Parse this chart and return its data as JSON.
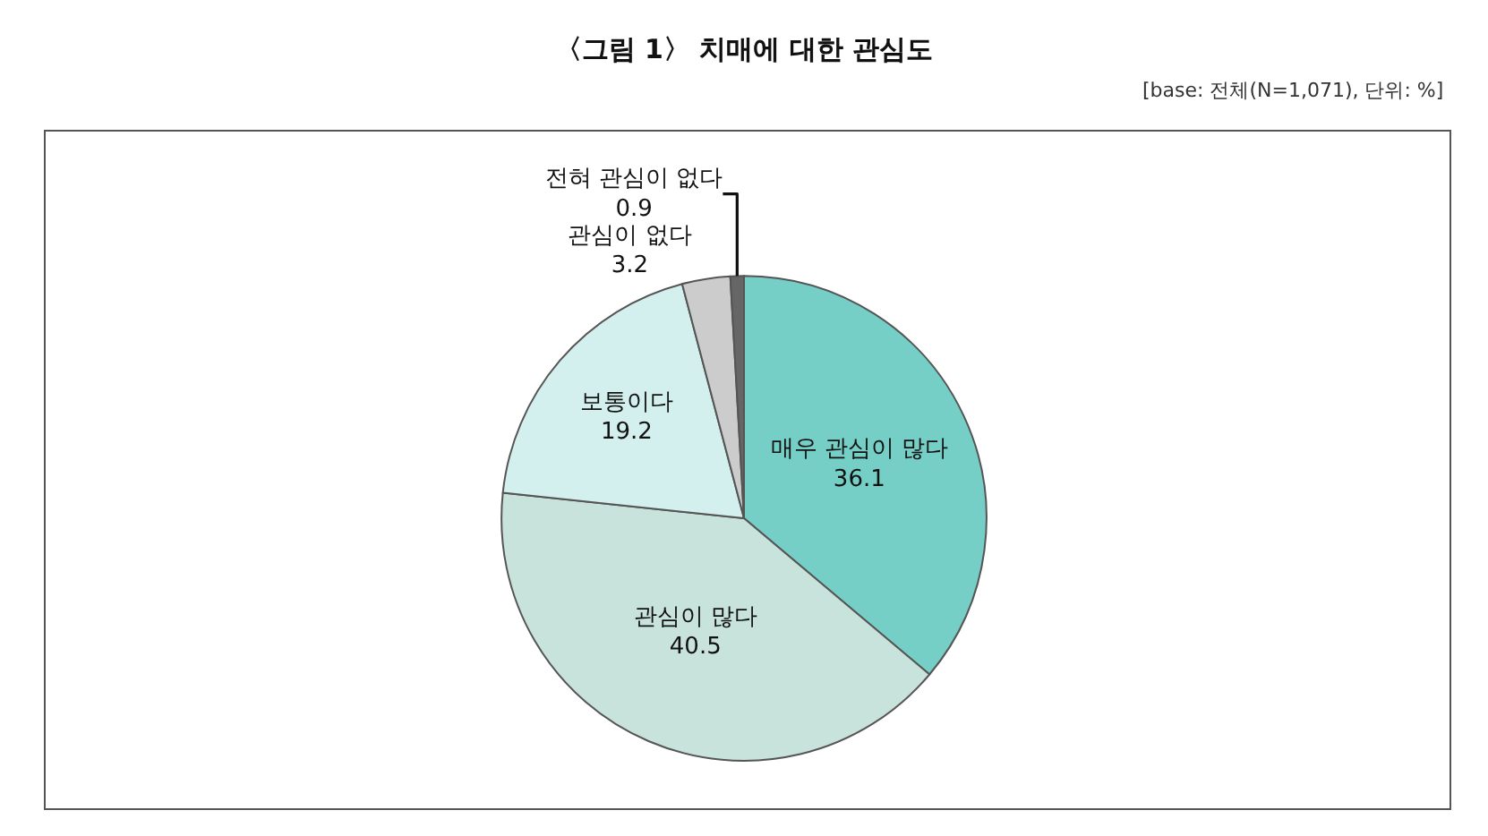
{
  "chart_data": {
    "type": "pie",
    "title": "〈그림 1〉 치매에 대한 관심도",
    "annotations": [
      "[base: 전체(N=1,071), 단위: %]"
    ],
    "categories": [
      "매우 관심이 많다",
      "관심이 많다",
      "보통이다",
      "관심이 없다",
      "전혀 관심이 없다"
    ],
    "values": [
      36.1,
      40.5,
      19.2,
      3.2,
      0.9
    ],
    "colors": [
      "#76cfc6",
      "#c8e2dc",
      "#d4f0ee",
      "#cccccc",
      "#666666"
    ],
    "data_labels": true,
    "legend": false
  }
}
